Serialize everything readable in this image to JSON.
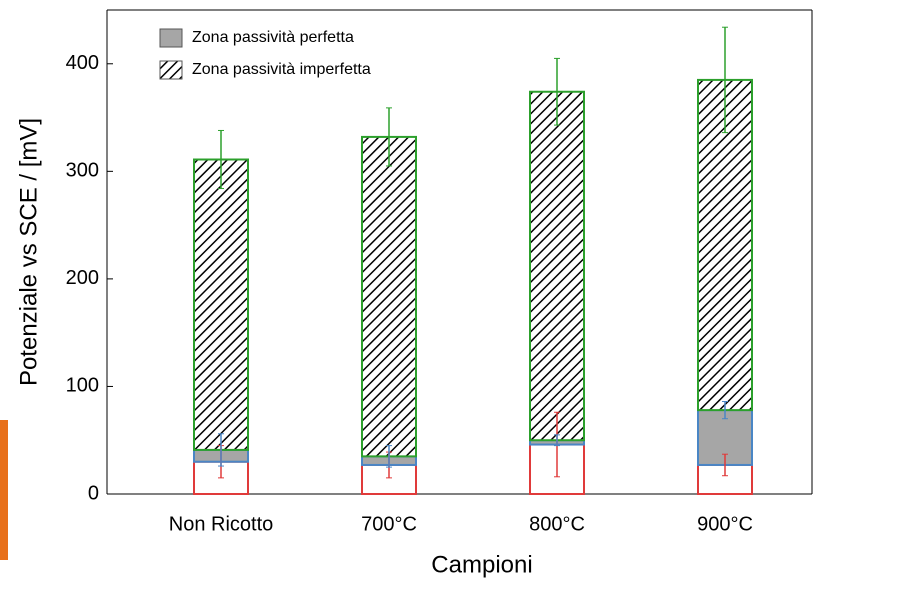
{
  "chart_data": {
    "type": "bar",
    "stacked": true,
    "categories": [
      "Non Ricotto",
      "700°C",
      "800°C",
      "900°C"
    ],
    "series": [
      {
        "color": "#e03a3a",
        "fill": "#ffffff",
        "values": [
          30,
          27,
          46,
          27
        ],
        "errors": [
          15,
          12,
          30,
          10
        ]
      },
      {
        "name": "Zona passività perfetta",
        "color": "#4a86c5",
        "fill": "#a6a6a6",
        "values": [
          11,
          8,
          4,
          51
        ],
        "errors": [
          15,
          10,
          5,
          8
        ]
      },
      {
        "name": "Zona passività imperfetta",
        "color": "#2ca02c",
        "fill": "hatch",
        "values": [
          270,
          297,
          324,
          307
        ],
        "errors": [
          27,
          27,
          31,
          49
        ]
      }
    ],
    "ylabel": "Potenziale vs SCE / [mV]",
    "xlabel": "Campioni",
    "ylim": [
      0,
      450
    ],
    "yticks": [
      0,
      100,
      200,
      300,
      400
    ],
    "legend": "upper-left"
  }
}
